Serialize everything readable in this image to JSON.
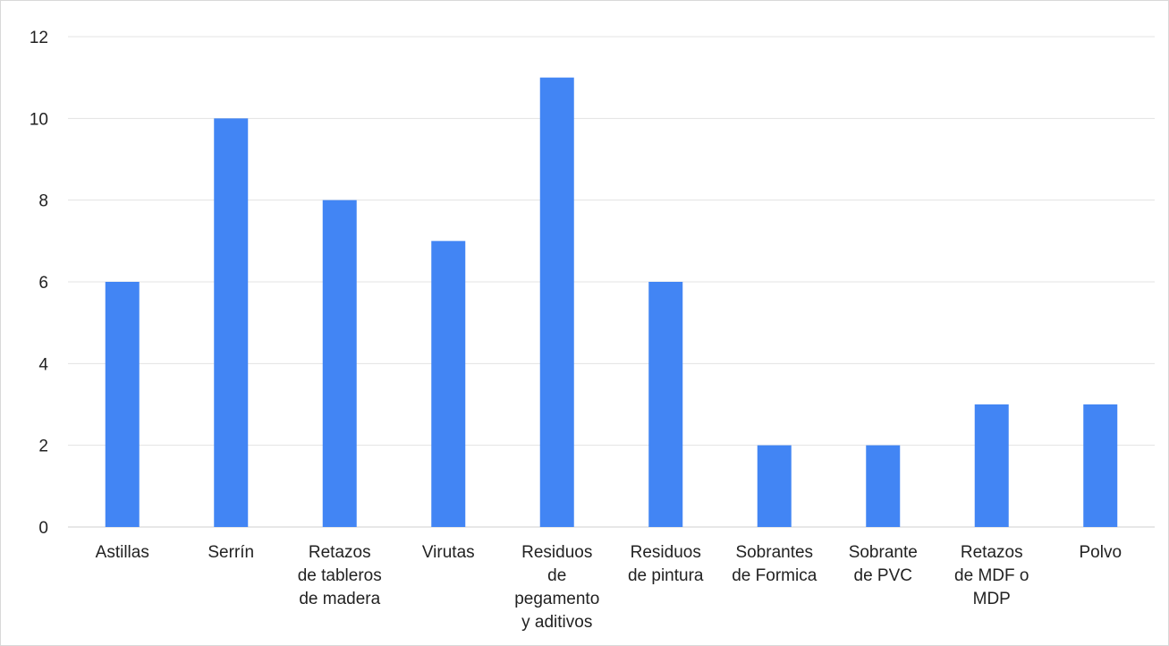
{
  "chart_data": {
    "type": "bar",
    "title": "",
    "xlabel": "",
    "ylabel": "",
    "ylim": [
      0,
      12
    ],
    "yticks": [
      0,
      2,
      4,
      6,
      8,
      10,
      12
    ],
    "grid": true,
    "legend": "none",
    "categories": [
      [
        "Astillas"
      ],
      [
        "Serrín"
      ],
      [
        "Retazos",
        "de tableros",
        "de madera"
      ],
      [
        "Virutas"
      ],
      [
        "Residuos",
        "de",
        "pegamento",
        "y aditivos"
      ],
      [
        "Residuos",
        "de pintura"
      ],
      [
        "Sobrantes",
        "de Formica"
      ],
      [
        "Sobrante",
        "de PVC"
      ],
      [
        "Retazos",
        "de MDF o",
        "MDP"
      ],
      [
        "Polvo"
      ]
    ],
    "values": [
      6,
      10,
      8,
      7,
      11,
      6,
      2,
      2,
      3,
      3
    ],
    "colors": {
      "bar": "#4285f4"
    }
  }
}
